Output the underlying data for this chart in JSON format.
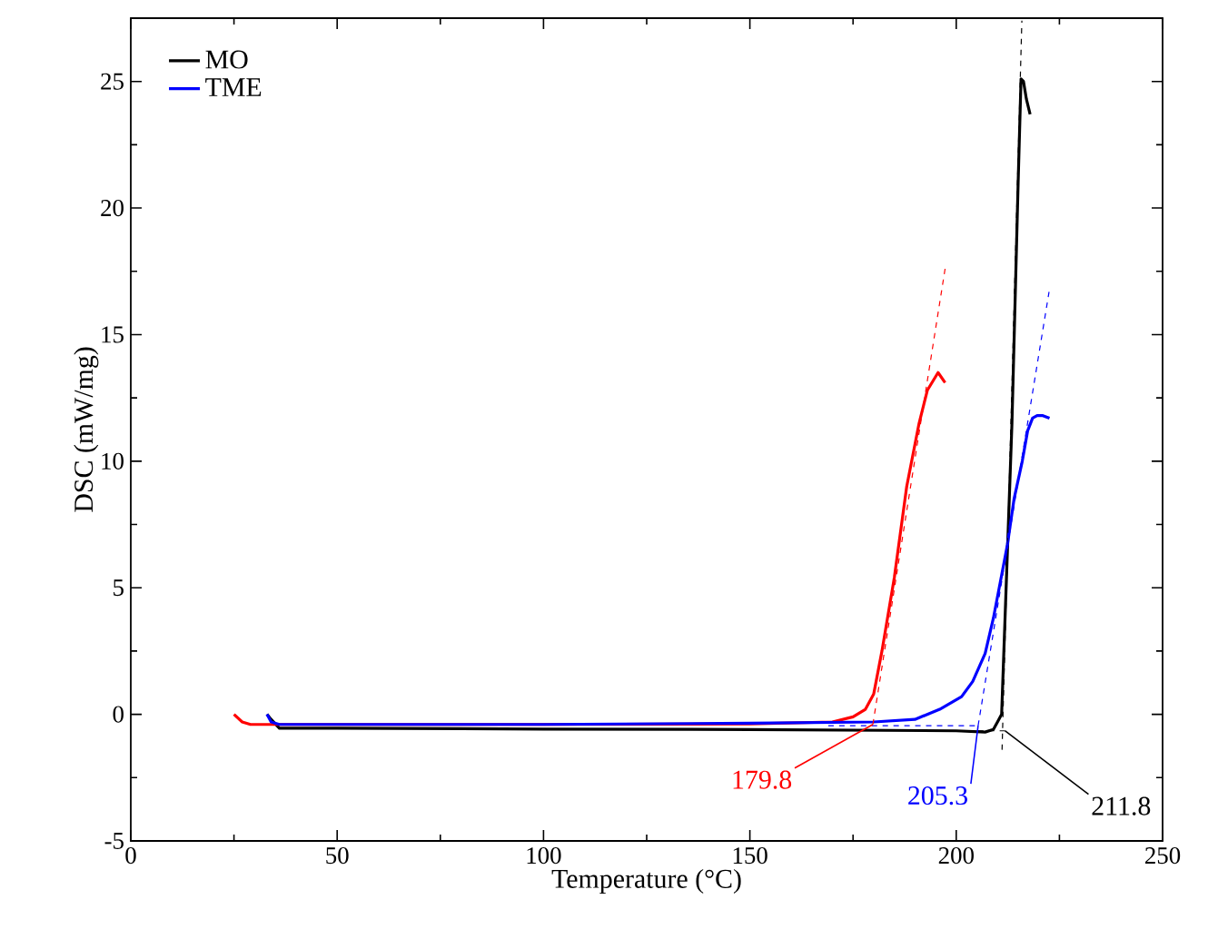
{
  "chart_data": {
    "type": "line",
    "xlabel": "Temperature (°C)",
    "ylabel": "DSC (mW/mg)",
    "xlim": [
      0,
      250
    ],
    "ylim": [
      -5,
      27.5
    ],
    "xticks": [
      0,
      50,
      100,
      150,
      200,
      250
    ],
    "yticks": [
      -5,
      0,
      5,
      10,
      15,
      20,
      25
    ],
    "grid": false,
    "legend": "top left",
    "marker": "none",
    "line_style": "solid",
    "series": [
      {
        "name": "MO",
        "color": "#000000",
        "x": [
          33,
          34,
          36,
          50,
          100,
          150,
          200,
          207,
          209,
          210,
          211,
          213.5,
          215,
          215.7,
          216.3,
          217,
          217.9
        ],
        "values": [
          0,
          -0.2,
          -0.55,
          -0.55,
          -0.58,
          -0.6,
          -0.65,
          -0.7,
          -0.6,
          -0.3,
          0,
          11.5,
          21,
          25.1,
          25,
          24.3,
          23.7
        ]
      },
      {
        "color": "#ff0000",
        "x": [
          25,
          27,
          29,
          35,
          100,
          150,
          170,
          175,
          178,
          180,
          182,
          185,
          188,
          191,
          193,
          195.6,
          197.3
        ],
        "values": [
          0,
          -0.3,
          -0.4,
          -0.4,
          -0.4,
          -0.38,
          -0.3,
          -0.1,
          0.2,
          0.8,
          2.5,
          5.4,
          9,
          11.5,
          12.8,
          13.5,
          13.1
        ]
      },
      {
        "name": "TME",
        "color": "#0000ff",
        "x": [
          33,
          34,
          36,
          100,
          150,
          180,
          190,
          196,
          201.3,
          204,
          207,
          209,
          211,
          212.4,
          214,
          216,
          217.3,
          218.5,
          219.6,
          221,
          222.6
        ],
        "values": [
          0,
          -0.3,
          -0.4,
          -0.4,
          -0.35,
          -0.3,
          -0.2,
          0.2,
          0.7,
          1.3,
          2.4,
          3.8,
          5.5,
          6.7,
          8.5,
          10,
          11.2,
          11.7,
          11.8,
          11.8,
          11.7
        ]
      },
      {
        "color": "#000000",
        "line_style": "dashed",
        "x": [
          200,
          211.8
        ],
        "values": [
          -0.65,
          -0.65
        ]
      },
      {
        "color": "#000000",
        "line_style": "dashed",
        "x": [
          211.1,
          215.9
        ],
        "values": [
          -1.4,
          27.4
        ]
      },
      {
        "color": "#ff0000",
        "line_style": "dashed",
        "x": [
          179.8,
          197.3
        ],
        "values": [
          -0.4,
          17.6
        ]
      },
      {
        "color": "#0000ff",
        "line_style": "dashed",
        "x": [
          169,
          205.3
        ],
        "values": [
          -0.45,
          -0.45
        ]
      },
      {
        "color": "#0000ff",
        "line_style": "dashed",
        "x": [
          205.3,
          222.6
        ],
        "values": [
          -0.45,
          16.8
        ]
      }
    ],
    "annotations": [
      {
        "text": "211.8",
        "x": 211.8,
        "y": -0.65
      },
      {
        "text": "179.8",
        "x": 179.8,
        "y": -0.4
      },
      {
        "text": "205.3",
        "x": 205.3,
        "y": -0.45
      }
    ]
  }
}
